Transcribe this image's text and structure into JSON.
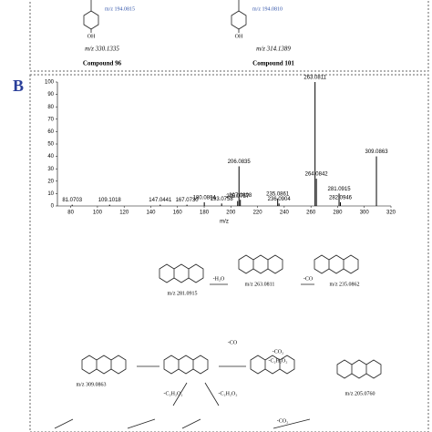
{
  "compounds": [
    {
      "fragment": "m/z 194.0815",
      "oh": "OH",
      "mass": "m/z 330.1335",
      "name": "Compound 96"
    },
    {
      "fragment": "m/z 194.0810",
      "oh": "OH",
      "mass": "m/z 314.1389",
      "name": "Compound 101"
    }
  ],
  "panel_label": "B",
  "chart_data": {
    "type": "bar",
    "x_label": "m/z",
    "x": [
      81.0703,
      109.1018,
      147.0441,
      167.073,
      180.0804,
      193.0758,
      205.0757,
      206.0835,
      207.0898,
      235.0861,
      236.0904,
      263.0811,
      264.0842,
      281.0915,
      282.0946,
      309.0863
    ],
    "peak_labels": [
      "81.0703",
      "109.1018",
      "147.0441",
      "167.0730",
      "180.0804",
      "193.0758",
      "205.0757",
      "206.0835",
      "207.0898",
      "235.0861",
      "236.0904",
      "263.0811",
      "264.0842",
      "281.0915",
      "282.0946",
      "309.0863"
    ],
    "values": [
      1,
      1,
      1,
      1,
      3,
      2,
      4,
      32,
      5,
      6,
      2,
      100,
      22,
      10,
      3,
      40
    ],
    "color": "#000000",
    "xlim": [
      70,
      320
    ],
    "xticks": [
      80,
      100,
      120,
      140,
      160,
      180,
      200,
      220,
      240,
      260,
      280,
      300,
      320
    ],
    "ylim": [
      0,
      100
    ],
    "yticks": [
      0,
      10,
      20,
      30,
      40,
      50,
      60,
      70,
      80,
      90,
      100
    ]
  },
  "scheme": {
    "labels": [
      "m/z 281.0915",
      "-H₂O",
      "m/z 263.0811",
      "-CO",
      "m/z 235.0862",
      "-CO",
      "-CO₂",
      "-C₂H₂O₂",
      "m/z 309.0863",
      "m/z 205.0760",
      "-C₂H₂O₂",
      "-C₂H₂O₂",
      "-CO₂"
    ]
  }
}
